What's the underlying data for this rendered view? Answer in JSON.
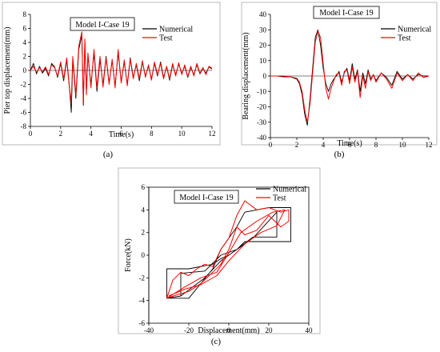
{
  "chart_data": [
    {
      "type": "line",
      "panel": "a",
      "panel_label": "(a)",
      "title": "Model I-Case 19",
      "xlabel": "Time(s)",
      "ylabel": "Pier top displacement(mm)",
      "xlim": [
        0,
        12
      ],
      "ylim": [
        -8,
        8
      ],
      "xticks": [
        0,
        2,
        4,
        6,
        8,
        10,
        12
      ],
      "yticks": [
        -8,
        -6,
        -4,
        -2,
        0,
        2,
        4,
        6,
        8
      ],
      "legend": "top-right",
      "series": [
        {
          "name": "Numerical",
          "color": "#000000",
          "x": [
            0,
            0.2,
            0.4,
            0.6,
            0.8,
            1,
            1.2,
            1.4,
            1.6,
            1.8,
            2,
            2.2,
            2.4,
            2.6,
            2.7,
            2.8,
            3,
            3.2,
            3.4,
            3.5,
            3.6,
            3.7,
            3.8,
            4,
            4.2,
            4.4,
            4.6,
            4.8,
            5,
            5.2,
            5.4,
            5.6,
            5.8,
            6,
            6.2,
            6.4,
            6.6,
            6.8,
            7,
            7.2,
            7.4,
            7.6,
            7.8,
            8,
            8.2,
            8.4,
            8.6,
            8.8,
            9,
            9.2,
            9.4,
            9.6,
            9.8,
            10,
            10.2,
            10.4,
            10.6,
            10.8,
            11,
            11.2,
            11.4,
            11.6,
            11.8,
            12
          ],
          "y": [
            0,
            1,
            -0.5,
            0.6,
            -0.4,
            0.3,
            -0.8,
            1,
            0.5,
            -1,
            1,
            -1.5,
            1.5,
            -3,
            -6,
            1.5,
            -4,
            3,
            5,
            -5,
            4,
            -3,
            2,
            -2,
            2.5,
            -3,
            1.5,
            -2,
            2,
            -1.8,
            1.4,
            -2.2,
            2.5,
            -1.6,
            1.2,
            -2,
            1.8,
            -1,
            0.8,
            -1.5,
            1.2,
            -0.8,
            0.6,
            -1.2,
            1,
            -0.8,
            1.2,
            -1,
            0.5,
            -1.4,
            0.8,
            -0.6,
            0.9,
            -0.4,
            0.6,
            -1,
            0.4,
            -0.6,
            0.8,
            -0.5,
            0.3,
            -0.4,
            0.5,
            0.2
          ]
        },
        {
          "name": "Test",
          "color": "#ff0000",
          "x": [
            0,
            0.2,
            0.4,
            0.6,
            0.8,
            1,
            1.2,
            1.4,
            1.6,
            1.8,
            2,
            2.2,
            2.4,
            2.6,
            2.7,
            2.8,
            3,
            3.2,
            3.4,
            3.5,
            3.6,
            3.7,
            3.8,
            4,
            4.2,
            4.4,
            4.6,
            4.8,
            5,
            5.2,
            5.4,
            5.6,
            5.8,
            6,
            6.2,
            6.4,
            6.6,
            6.8,
            7,
            7.2,
            7.4,
            7.6,
            7.8,
            8,
            8.2,
            8.4,
            8.6,
            8.8,
            9,
            9.2,
            9.4,
            9.6,
            9.8,
            10,
            10.2,
            10.4,
            10.6,
            10.8,
            11,
            11.2,
            11.4,
            11.6,
            11.8,
            12
          ],
          "y": [
            0,
            0.6,
            -0.3,
            0.4,
            -0.2,
            0.5,
            -0.6,
            0.8,
            0.4,
            -0.8,
            1.2,
            -1.2,
            1.8,
            -2.8,
            -4.5,
            2,
            -3.5,
            3.5,
            5.5,
            -4.5,
            4.5,
            -3.5,
            2.5,
            -2.5,
            3,
            -2.5,
            2,
            -2.4,
            1.8,
            -2,
            1.6,
            -2.5,
            3,
            -1.8,
            1.5,
            -2.2,
            1.6,
            -1.2,
            1,
            -1.2,
            1.4,
            -1,
            0.8,
            -1.4,
            1.2,
            -0.6,
            1,
            -1.2,
            0.6,
            -1.2,
            1,
            -0.8,
            1.1,
            -0.6,
            0.8,
            -0.9,
            0.6,
            -0.8,
            1,
            -0.4,
            0.4,
            -0.6,
            0.6,
            0.3
          ]
        }
      ]
    },
    {
      "type": "line",
      "panel": "b",
      "panel_label": "(b)",
      "title": "Model I-Case 19",
      "xlabel": "Time(s)",
      "ylabel": "Bearing displacement(mm)",
      "xlim": [
        0,
        12
      ],
      "ylim": [
        -40,
        40
      ],
      "xticks": [
        0,
        2,
        4,
        6,
        8,
        10,
        12
      ],
      "yticks": [
        -40,
        -30,
        -20,
        -10,
        0,
        10,
        20,
        30,
        40
      ],
      "legend": "top-right",
      "series": [
        {
          "name": "Numerical",
          "color": "#000000",
          "x": [
            0,
            0.5,
            1,
            1.5,
            2,
            2.2,
            2.4,
            2.6,
            2.8,
            3,
            3.2,
            3.4,
            3.6,
            3.8,
            4,
            4.2,
            4.4,
            4.6,
            4.8,
            5,
            5.2,
            5.4,
            5.6,
            5.8,
            6,
            6.2,
            6.4,
            6.6,
            6.8,
            7,
            7.2,
            7.4,
            7.6,
            7.8,
            8,
            8.4,
            8.8,
            9.2,
            9.6,
            10,
            10.4,
            10.8,
            11.2,
            11.6,
            12
          ],
          "y": [
            0,
            0,
            -0.5,
            -0.5,
            -2,
            -5,
            -12,
            -25,
            -32,
            -15,
            5,
            25,
            30,
            20,
            5,
            -5,
            -10,
            -5,
            -2,
            0,
            3,
            -4,
            2,
            5,
            -3,
            8,
            -2,
            4,
            -10,
            2,
            -5,
            4,
            -2,
            1,
            -3,
            2,
            -1,
            -6,
            3,
            -2,
            1,
            -2,
            1,
            0,
            0
          ]
        },
        {
          "name": "Test",
          "color": "#ff0000",
          "x": [
            0,
            0.5,
            1,
            1.5,
            2,
            2.2,
            2.4,
            2.6,
            2.8,
            3,
            3.2,
            3.4,
            3.6,
            3.8,
            4,
            4.2,
            4.4,
            4.6,
            4.8,
            5,
            5.2,
            5.4,
            5.6,
            5.8,
            6,
            6.2,
            6.4,
            6.6,
            6.8,
            7,
            7.2,
            7.4,
            7.6,
            7.8,
            8,
            8.4,
            8.8,
            9.2,
            9.6,
            10,
            10.4,
            10.8,
            11.2,
            11.6,
            12
          ],
          "y": [
            0,
            0,
            0,
            -0.5,
            -1.5,
            -4,
            -10,
            -22,
            -30,
            -18,
            2,
            22,
            29,
            25,
            8,
            -8,
            -15,
            -8,
            -3,
            1,
            2,
            -6,
            3,
            4,
            -5,
            6,
            -4,
            3,
            -14,
            0,
            -8,
            3,
            -3,
            1,
            -4,
            2,
            -2,
            -8,
            2,
            -3,
            1,
            -3,
            2,
            -1,
            0
          ]
        }
      ]
    },
    {
      "type": "line",
      "panel": "c",
      "panel_label": "(c)",
      "title": "Model I-Case 19",
      "xlabel": "Displacement(mm)",
      "ylabel": "Force(kN)",
      "xlim": [
        -40,
        40
      ],
      "ylim": [
        -6,
        6
      ],
      "xticks": [
        -40,
        -20,
        0,
        20,
        40
      ],
      "yticks": [
        -6,
        -4,
        -2,
        0,
        2,
        4,
        6
      ],
      "legend": "top-left",
      "series": [
        {
          "name": "Numerical",
          "color": "#000000",
          "x": [
            -31,
            -31,
            -20,
            -8,
            -4,
            0,
            4,
            8,
            20,
            31,
            31,
            20,
            8,
            4,
            0,
            -4,
            -8,
            -20,
            -31,
            -24,
            -24,
            -12,
            -4,
            4,
            12,
            24,
            24,
            12,
            4,
            -4,
            -12,
            -24,
            -31
          ],
          "y": [
            -3.8,
            -1.2,
            -1.2,
            -0.8,
            -0.3,
            0,
            0.5,
            1.2,
            1.2,
            1.2,
            4.2,
            4.2,
            3.8,
            2.5,
            1.5,
            0.5,
            -1.2,
            -3.8,
            -3.8,
            -3.6,
            -1.6,
            -1.4,
            0,
            0.5,
            1.5,
            3.8,
            1.6,
            1.6,
            0.5,
            -0.5,
            -2,
            -3.6,
            -3.8
          ]
        },
        {
          "name": "Test",
          "color": "#ff0000",
          "x": [
            -31,
            -28,
            -24,
            -20,
            -16,
            -12,
            -8,
            -4,
            0,
            4,
            8,
            14,
            20,
            26,
            30,
            30,
            26,
            20,
            14,
            8,
            4,
            0,
            -4,
            -8,
            -14,
            -20,
            -26,
            -31,
            -22,
            -14,
            -6,
            0,
            6,
            14,
            22,
            28,
            24,
            16,
            8,
            0,
            -6,
            -14,
            -22,
            -30
          ],
          "y": [
            -3.8,
            -2.2,
            -1.5,
            -1.8,
            -1.2,
            -0.8,
            -1,
            0.5,
            1.5,
            3.5,
            4.8,
            4,
            4.2,
            3.8,
            4,
            3,
            2.5,
            3.5,
            2.2,
            1.8,
            2.5,
            0.5,
            -0.8,
            -1.5,
            -2.5,
            -3.2,
            -3.5,
            -3.8,
            -2.8,
            -2,
            -1.5,
            0.2,
            2,
            3,
            3.8,
            4,
            2.6,
            2,
            1,
            -0.5,
            -1.8,
            -2.6,
            -3,
            -3.6
          ]
        }
      ]
    }
  ]
}
